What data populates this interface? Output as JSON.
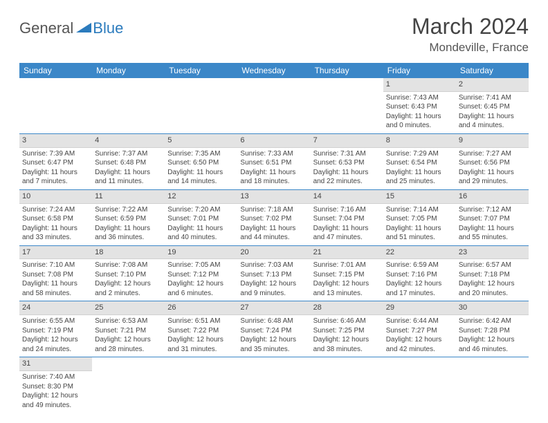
{
  "logo": {
    "general": "General",
    "blue": "Blue"
  },
  "header": {
    "title": "March 2024",
    "location": "Mondeville, France"
  },
  "colors": {
    "header_bg": "#3b87c8",
    "header_text": "#ffffff",
    "daynum_bg": "#e3e3e3",
    "rule": "#3b87c8",
    "text": "#444444",
    "logo_gray": "#555555",
    "logo_blue": "#2b7bbd"
  },
  "weekdays": [
    "Sunday",
    "Monday",
    "Tuesday",
    "Wednesday",
    "Thursday",
    "Friday",
    "Saturday"
  ],
  "weeks": [
    [
      null,
      null,
      null,
      null,
      null,
      {
        "n": "1",
        "sunrise": "Sunrise: 7:43 AM",
        "sunset": "Sunset: 6:43 PM",
        "d1": "Daylight: 11 hours",
        "d2": "and 0 minutes."
      },
      {
        "n": "2",
        "sunrise": "Sunrise: 7:41 AM",
        "sunset": "Sunset: 6:45 PM",
        "d1": "Daylight: 11 hours",
        "d2": "and 4 minutes."
      }
    ],
    [
      {
        "n": "3",
        "sunrise": "Sunrise: 7:39 AM",
        "sunset": "Sunset: 6:47 PM",
        "d1": "Daylight: 11 hours",
        "d2": "and 7 minutes."
      },
      {
        "n": "4",
        "sunrise": "Sunrise: 7:37 AM",
        "sunset": "Sunset: 6:48 PM",
        "d1": "Daylight: 11 hours",
        "d2": "and 11 minutes."
      },
      {
        "n": "5",
        "sunrise": "Sunrise: 7:35 AM",
        "sunset": "Sunset: 6:50 PM",
        "d1": "Daylight: 11 hours",
        "d2": "and 14 minutes."
      },
      {
        "n": "6",
        "sunrise": "Sunrise: 7:33 AM",
        "sunset": "Sunset: 6:51 PM",
        "d1": "Daylight: 11 hours",
        "d2": "and 18 minutes."
      },
      {
        "n": "7",
        "sunrise": "Sunrise: 7:31 AM",
        "sunset": "Sunset: 6:53 PM",
        "d1": "Daylight: 11 hours",
        "d2": "and 22 minutes."
      },
      {
        "n": "8",
        "sunrise": "Sunrise: 7:29 AM",
        "sunset": "Sunset: 6:54 PM",
        "d1": "Daylight: 11 hours",
        "d2": "and 25 minutes."
      },
      {
        "n": "9",
        "sunrise": "Sunrise: 7:27 AM",
        "sunset": "Sunset: 6:56 PM",
        "d1": "Daylight: 11 hours",
        "d2": "and 29 minutes."
      }
    ],
    [
      {
        "n": "10",
        "sunrise": "Sunrise: 7:24 AM",
        "sunset": "Sunset: 6:58 PM",
        "d1": "Daylight: 11 hours",
        "d2": "and 33 minutes."
      },
      {
        "n": "11",
        "sunrise": "Sunrise: 7:22 AM",
        "sunset": "Sunset: 6:59 PM",
        "d1": "Daylight: 11 hours",
        "d2": "and 36 minutes."
      },
      {
        "n": "12",
        "sunrise": "Sunrise: 7:20 AM",
        "sunset": "Sunset: 7:01 PM",
        "d1": "Daylight: 11 hours",
        "d2": "and 40 minutes."
      },
      {
        "n": "13",
        "sunrise": "Sunrise: 7:18 AM",
        "sunset": "Sunset: 7:02 PM",
        "d1": "Daylight: 11 hours",
        "d2": "and 44 minutes."
      },
      {
        "n": "14",
        "sunrise": "Sunrise: 7:16 AM",
        "sunset": "Sunset: 7:04 PM",
        "d1": "Daylight: 11 hours",
        "d2": "and 47 minutes."
      },
      {
        "n": "15",
        "sunrise": "Sunrise: 7:14 AM",
        "sunset": "Sunset: 7:05 PM",
        "d1": "Daylight: 11 hours",
        "d2": "and 51 minutes."
      },
      {
        "n": "16",
        "sunrise": "Sunrise: 7:12 AM",
        "sunset": "Sunset: 7:07 PM",
        "d1": "Daylight: 11 hours",
        "d2": "and 55 minutes."
      }
    ],
    [
      {
        "n": "17",
        "sunrise": "Sunrise: 7:10 AM",
        "sunset": "Sunset: 7:08 PM",
        "d1": "Daylight: 11 hours",
        "d2": "and 58 minutes."
      },
      {
        "n": "18",
        "sunrise": "Sunrise: 7:08 AM",
        "sunset": "Sunset: 7:10 PM",
        "d1": "Daylight: 12 hours",
        "d2": "and 2 minutes."
      },
      {
        "n": "19",
        "sunrise": "Sunrise: 7:05 AM",
        "sunset": "Sunset: 7:12 PM",
        "d1": "Daylight: 12 hours",
        "d2": "and 6 minutes."
      },
      {
        "n": "20",
        "sunrise": "Sunrise: 7:03 AM",
        "sunset": "Sunset: 7:13 PM",
        "d1": "Daylight: 12 hours",
        "d2": "and 9 minutes."
      },
      {
        "n": "21",
        "sunrise": "Sunrise: 7:01 AM",
        "sunset": "Sunset: 7:15 PM",
        "d1": "Daylight: 12 hours",
        "d2": "and 13 minutes."
      },
      {
        "n": "22",
        "sunrise": "Sunrise: 6:59 AM",
        "sunset": "Sunset: 7:16 PM",
        "d1": "Daylight: 12 hours",
        "d2": "and 17 minutes."
      },
      {
        "n": "23",
        "sunrise": "Sunrise: 6:57 AM",
        "sunset": "Sunset: 7:18 PM",
        "d1": "Daylight: 12 hours",
        "d2": "and 20 minutes."
      }
    ],
    [
      {
        "n": "24",
        "sunrise": "Sunrise: 6:55 AM",
        "sunset": "Sunset: 7:19 PM",
        "d1": "Daylight: 12 hours",
        "d2": "and 24 minutes."
      },
      {
        "n": "25",
        "sunrise": "Sunrise: 6:53 AM",
        "sunset": "Sunset: 7:21 PM",
        "d1": "Daylight: 12 hours",
        "d2": "and 28 minutes."
      },
      {
        "n": "26",
        "sunrise": "Sunrise: 6:51 AM",
        "sunset": "Sunset: 7:22 PM",
        "d1": "Daylight: 12 hours",
        "d2": "and 31 minutes."
      },
      {
        "n": "27",
        "sunrise": "Sunrise: 6:48 AM",
        "sunset": "Sunset: 7:24 PM",
        "d1": "Daylight: 12 hours",
        "d2": "and 35 minutes."
      },
      {
        "n": "28",
        "sunrise": "Sunrise: 6:46 AM",
        "sunset": "Sunset: 7:25 PM",
        "d1": "Daylight: 12 hours",
        "d2": "and 38 minutes."
      },
      {
        "n": "29",
        "sunrise": "Sunrise: 6:44 AM",
        "sunset": "Sunset: 7:27 PM",
        "d1": "Daylight: 12 hours",
        "d2": "and 42 minutes."
      },
      {
        "n": "30",
        "sunrise": "Sunrise: 6:42 AM",
        "sunset": "Sunset: 7:28 PM",
        "d1": "Daylight: 12 hours",
        "d2": "and 46 minutes."
      }
    ],
    [
      {
        "n": "31",
        "sunrise": "Sunrise: 7:40 AM",
        "sunset": "Sunset: 8:30 PM",
        "d1": "Daylight: 12 hours",
        "d2": "and 49 minutes."
      },
      null,
      null,
      null,
      null,
      null,
      null
    ]
  ]
}
